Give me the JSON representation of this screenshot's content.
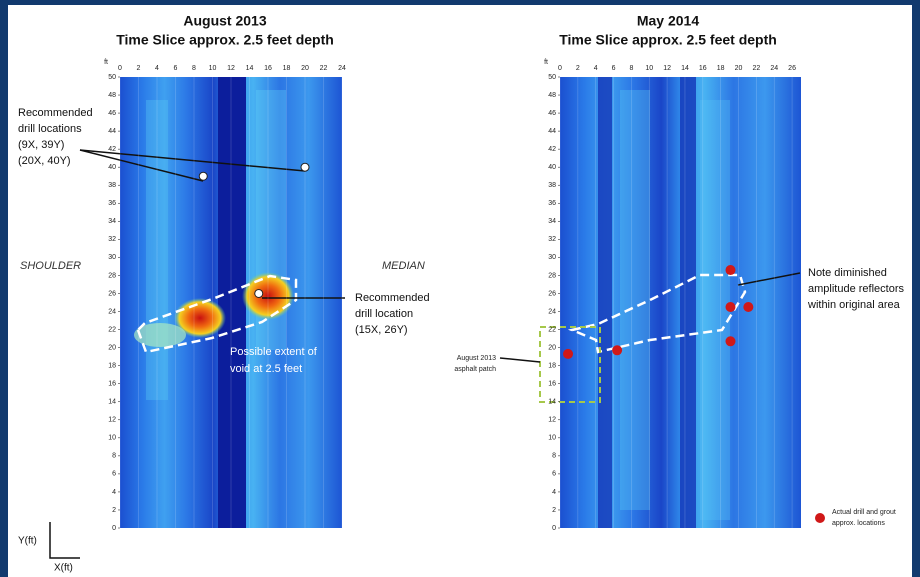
{
  "left": {
    "title": "August 2013",
    "subtitle": "Time Slice approx. 2.5 feet depth",
    "unit": "ft",
    "xlim": [
      0,
      24
    ],
    "ylim": [
      0,
      50
    ],
    "xticks": [
      0,
      2,
      4,
      6,
      8,
      10,
      12,
      14,
      16,
      18,
      20,
      22,
      24
    ],
    "yticks": [
      0,
      2,
      4,
      6,
      8,
      10,
      12,
      14,
      16,
      18,
      20,
      22,
      24,
      26,
      28,
      30,
      32,
      34,
      36,
      38,
      40,
      42,
      44,
      46,
      48,
      50
    ],
    "recommended_points": [
      {
        "x": 9,
        "y": 39
      },
      {
        "x": 20,
        "y": 40
      },
      {
        "x": 15,
        "y": 26
      }
    ],
    "label_drill_locations": [
      "Recommended",
      "drill locations",
      "(9X, 39Y)",
      "(20X, 40Y)"
    ],
    "label_drill_location": [
      "Recommended",
      "drill location",
      "(15X, 26Y)"
    ],
    "label_void": [
      "Possible extent of",
      "void at 2.5 feet"
    ],
    "label_shoulder": "SHOULDER",
    "label_median": "MEDIAN"
  },
  "right": {
    "title": "May 2014",
    "subtitle": "Time Slice approx. 2.5 feet depth",
    "unit": "ft",
    "xlim": [
      0,
      27
    ],
    "ylim": [
      0,
      50
    ],
    "xticks": [
      0,
      2,
      4,
      6,
      8,
      10,
      12,
      14,
      16,
      18,
      20,
      22,
      24,
      26
    ],
    "yticks": [
      0,
      2,
      4,
      6,
      8,
      10,
      12,
      14,
      16,
      18,
      20,
      22,
      24,
      26,
      28,
      30,
      32,
      34,
      36,
      38,
      40,
      42,
      44,
      46,
      48,
      50
    ],
    "drill_points": [
      {
        "x": 0.9,
        "y": 19.3
      },
      {
        "x": 6.4,
        "y": 19.7
      },
      {
        "x": 19.1,
        "y": 28.6
      },
      {
        "x": 19.1,
        "y": 24.5
      },
      {
        "x": 21.1,
        "y": 24.5
      },
      {
        "x": 19.1,
        "y": 20.7
      }
    ],
    "label_diminished": [
      "Note diminished",
      "amplitude reflectors",
      "within original area"
    ],
    "label_patch": [
      "August 2013",
      "asphalt patch"
    ],
    "legend_drill": [
      "Actual drill and grout",
      "approx. locations"
    ]
  },
  "axis_y": "Y(ft)",
  "axis_x": "X(ft)"
}
